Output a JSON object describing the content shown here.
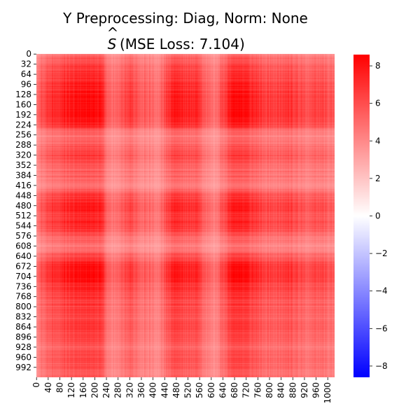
{
  "chart_data": {
    "type": "heatmap",
    "title_line1": "Y Preprocessing: Diag, Norm: None",
    "title_line2_prefix": "S",
    "title_line2_hat": "^",
    "title_line2_rest": " (MSE Loss: 7.104)",
    "matrix_size": 1024,
    "xtick_labels": [
      "0",
      "40",
      "80",
      "120",
      "160",
      "200",
      "240",
      "280",
      "320",
      "360",
      "400",
      "440",
      "480",
      "520",
      "560",
      "600",
      "640",
      "680",
      "720",
      "760",
      "800",
      "840",
      "880",
      "920",
      "960",
      "1000"
    ],
    "ytick_labels": [
      "0",
      "32",
      "64",
      "96",
      "128",
      "160",
      "192",
      "224",
      "256",
      "288",
      "320",
      "352",
      "384",
      "416",
      "448",
      "480",
      "512",
      "544",
      "576",
      "608",
      "640",
      "672",
      "704",
      "736",
      "768",
      "800",
      "832",
      "864",
      "896",
      "928",
      "960",
      "992"
    ],
    "colorbar": {
      "vmin": -8.6,
      "vmax": 8.6,
      "ticks": [
        8,
        6,
        4,
        2,
        0,
        -2,
        -4,
        -6,
        -8
      ],
      "tick_labels": [
        "8",
        "6",
        "4",
        "2",
        "0",
        "−2",
        "−4",
        "−6",
        "−8"
      ],
      "colormap": "bwr",
      "low_color": "#0000ff",
      "mid_color": "#ffffff",
      "high_color": "#ff0000"
    },
    "block_profile": {
      "index": [
        0,
        32,
        64,
        128,
        192,
        224,
        240,
        256,
        288,
        320,
        352,
        384,
        416,
        448,
        480,
        512,
        544,
        576,
        608,
        640,
        672,
        704,
        736,
        768,
        800,
        832,
        864,
        896,
        928,
        960,
        992,
        1023
      ],
      "strength": [
        0.55,
        0.72,
        0.85,
        0.95,
        1.0,
        0.9,
        0.6,
        0.5,
        0.62,
        0.75,
        0.6,
        0.58,
        0.45,
        0.78,
        0.92,
        0.82,
        0.88,
        0.62,
        0.45,
        0.7,
        1.0,
        1.0,
        0.88,
        0.8,
        0.75,
        0.72,
        0.8,
        0.74,
        0.6,
        0.72,
        0.68,
        0.62
      ]
    },
    "value_range_shown": [
      1.5,
      8.6
    ]
  }
}
